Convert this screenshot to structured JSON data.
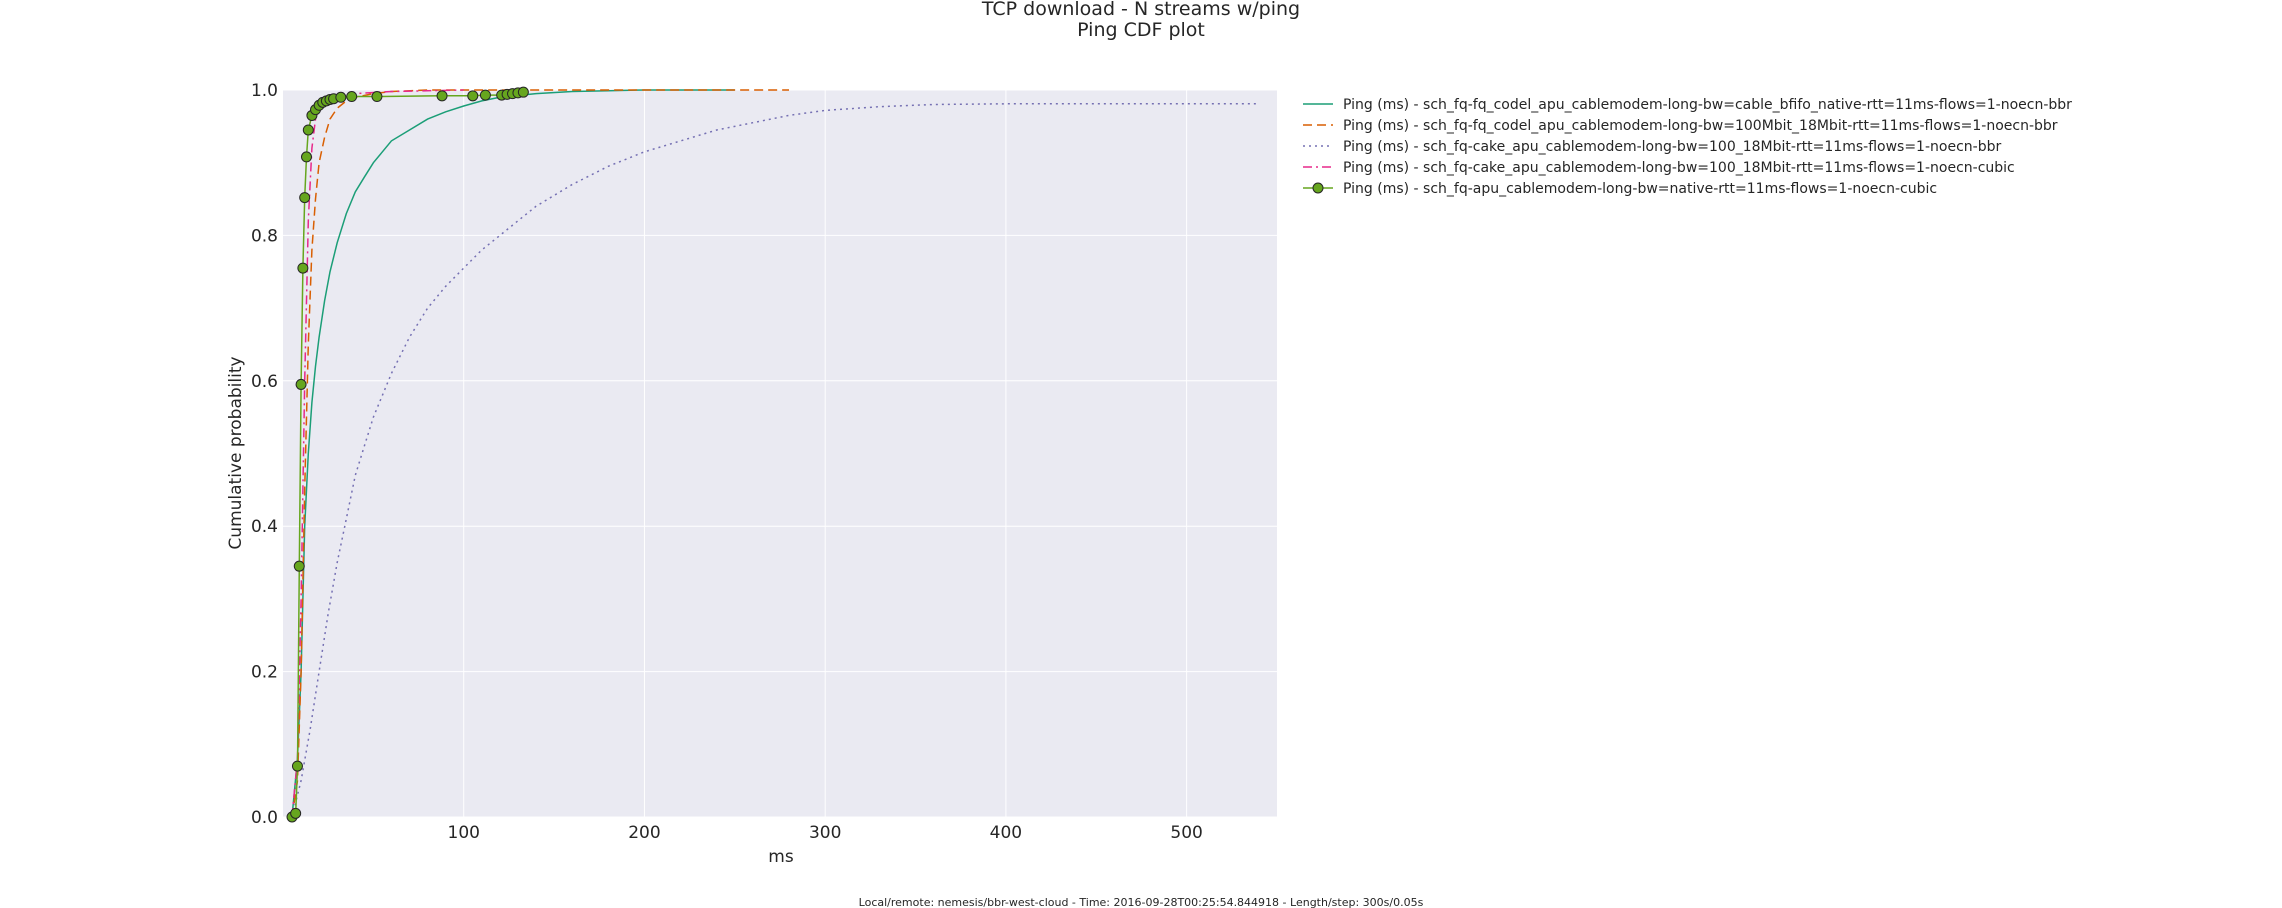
{
  "chart_data": {
    "type": "line",
    "title": "TCP download - N streams w/ping",
    "subtitle": "Ping CDF plot",
    "xlabel": "ms",
    "ylabel": "Cumulative probability",
    "xlim": [
      0,
      550
    ],
    "ylim": [
      0,
      1.0
    ],
    "x_ticks": [
      100,
      200,
      300,
      400,
      500
    ],
    "x_tick_labels": [
      "100",
      "200",
      "300",
      "400",
      "500"
    ],
    "y_ticks": [
      0.0,
      0.2,
      0.4,
      0.6,
      0.8,
      1.0
    ],
    "y_tick_labels": [
      "0.0",
      "0.2",
      "0.4",
      "0.6",
      "0.8",
      "1.0"
    ],
    "grid": true,
    "legend_position": "outside right",
    "footer": "Local/remote: nemesis/bbr-west-cloud - Time: 2016-09-28T00:25:54.844918 - Length/step: 300s/0.05s",
    "series": [
      {
        "name": "Ping (ms) - sch_fq-fq_codel_apu_cablemodem-long-bw=cable_bfifo_native-rtt=11ms-flows=1-noecn-bbr",
        "color": "#1b9e77",
        "style": "solid",
        "x": [
          5,
          8,
          10,
          11,
          12,
          14,
          16,
          18,
          20,
          23,
          26,
          30,
          35,
          40,
          45,
          50,
          55,
          60,
          70,
          80,
          90,
          100,
          110,
          120,
          140,
          160,
          180,
          200,
          250
        ],
        "y": [
          0,
          0.08,
          0.2,
          0.3,
          0.4,
          0.5,
          0.57,
          0.62,
          0.66,
          0.71,
          0.75,
          0.79,
          0.83,
          0.86,
          0.88,
          0.9,
          0.915,
          0.93,
          0.945,
          0.96,
          0.97,
          0.978,
          0.985,
          0.99,
          0.995,
          0.998,
          0.999,
          1.0,
          1.0
        ]
      },
      {
        "name": "Ping (ms) - sch_fq-fq_codel_apu_cablemodem-long-bw=100Mbit_18Mbit-rtt=11ms-flows=1-noecn-bbr",
        "color": "#d95f02",
        "style": "dashed",
        "x": [
          5,
          8,
          10,
          12,
          14,
          16,
          18,
          20,
          23,
          26,
          30,
          35,
          40,
          50,
          60,
          80,
          100,
          150,
          200,
          280
        ],
        "y": [
          0,
          0.05,
          0.2,
          0.45,
          0.65,
          0.78,
          0.85,
          0.9,
          0.935,
          0.96,
          0.975,
          0.985,
          0.99,
          0.995,
          0.998,
          1.0,
          1.0,
          1.0,
          1.0,
          1.0
        ]
      },
      {
        "name": "Ping (ms) - sch_fq-cake_apu_cablemodem-long-bw=100_18Mbit-rtt=11ms-flows=1-noecn-bbr",
        "color": "#7570b3",
        "style": "dotted",
        "x": [
          5,
          10,
          15,
          20,
          25,
          30,
          35,
          40,
          45,
          50,
          55,
          60,
          70,
          80,
          90,
          100,
          110,
          120,
          140,
          160,
          180,
          200,
          220,
          240,
          260,
          280,
          300,
          330,
          360,
          400,
          450,
          500,
          540
        ],
        "y": [
          0,
          0.05,
          0.12,
          0.2,
          0.28,
          0.35,
          0.41,
          0.47,
          0.51,
          0.55,
          0.58,
          0.61,
          0.66,
          0.7,
          0.73,
          0.755,
          0.78,
          0.8,
          0.84,
          0.87,
          0.895,
          0.915,
          0.93,
          0.945,
          0.955,
          0.965,
          0.972,
          0.977,
          0.98,
          0.981,
          0.981,
          0.981,
          0.981
        ]
      },
      {
        "name": "Ping (ms) - sch_fq-cake_apu_cablemodem-long-bw=100_18Mbit-rtt=11ms-flows=1-noecn-cubic",
        "color": "#e7298a",
        "style": "dashdot",
        "x": [
          5,
          8,
          10,
          12,
          14,
          16,
          18,
          20,
          25,
          30,
          40,
          60,
          100
        ],
        "y": [
          0,
          0.08,
          0.3,
          0.6,
          0.82,
          0.92,
          0.96,
          0.975,
          0.985,
          0.99,
          0.995,
          0.998,
          1.0
        ]
      },
      {
        "name": "Ping (ms) - sch_fq-apu_cablemodem-long-bw=native-rtt=11ms-flows=1-noecn-cubic",
        "color": "#66a61e",
        "style": "solid-marker",
        "x": [
          5,
          7,
          8,
          9,
          10,
          11,
          12,
          13,
          14,
          16,
          18,
          20,
          22,
          24,
          26,
          28,
          32,
          38,
          52,
          88,
          105,
          112,
          121,
          124,
          127,
          130,
          133
        ],
        "y": [
          0.0,
          0.005,
          0.07,
          0.345,
          0.595,
          0.755,
          0.852,
          0.908,
          0.945,
          0.965,
          0.973,
          0.979,
          0.983,
          0.985,
          0.987,
          0.988,
          0.99,
          0.991,
          0.991,
          0.992,
          0.992,
          0.993,
          0.993,
          0.994,
          0.995,
          0.996,
          0.997
        ]
      }
    ]
  }
}
